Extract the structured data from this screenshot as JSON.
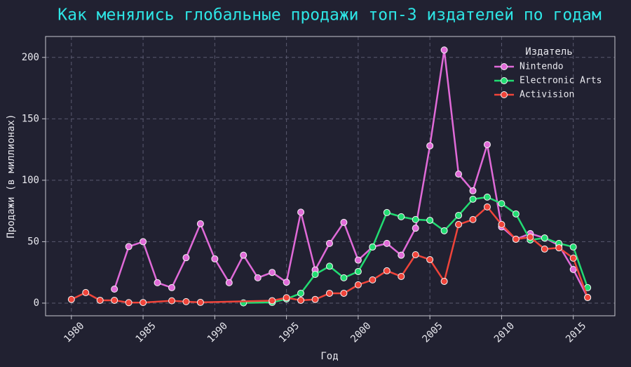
{
  "chart_data": {
    "type": "line",
    "title": "Как менялись глобальные продажи топ-3 издателей по годам",
    "x_label": "Год",
    "y_label": "Продажи (в миллионах)",
    "legend_title": "Издатель",
    "legend": "upper right",
    "grid": true,
    "xlim": [
      1978.2,
      2017.9
    ],
    "xticks": [
      1980,
      1985,
      1990,
      1995,
      2000,
      2005,
      2010,
      2015
    ],
    "ylim": [
      -10.3,
      217
    ],
    "yticks": [
      0,
      50,
      100,
      150,
      200
    ],
    "series": [
      {
        "name": "Nintendo",
        "color": "#e06ad8",
        "x": [
          1983,
          1984,
          1985,
          1986,
          1987,
          1988,
          1989,
          1990,
          1991,
          1992,
          1993,
          1994,
          1995,
          1996,
          1997,
          1998,
          1999,
          2000,
          2001,
          2002,
          2003,
          2004,
          2005,
          2006,
          2007,
          2008,
          2009,
          2010,
          2011,
          2012,
          2013,
          2014,
          2015,
          2016
        ],
        "values": [
          11.4,
          46,
          50,
          16.6,
          12.6,
          37,
          64.6,
          36,
          16.6,
          39,
          20.6,
          25,
          17,
          74,
          27,
          48.6,
          65.7,
          35,
          45.7,
          48.6,
          39,
          61,
          128,
          206,
          105,
          91.4,
          129,
          62,
          52,
          56.6,
          53,
          47,
          27.4,
          4.6
        ]
      },
      {
        "name": "Electronic Arts",
        "color": "#22dc72",
        "x": [
          1992,
          1994,
          1995,
          1996,
          1997,
          1998,
          1999,
          2000,
          2001,
          2002,
          2003,
          2004,
          2005,
          2006,
          2007,
          2008,
          2009,
          2010,
          2011,
          2012,
          2013,
          2014,
          2015,
          2016
        ],
        "values": [
          0.2,
          0.6,
          3.4,
          8,
          23.4,
          30,
          20.6,
          25.7,
          45.7,
          73.7,
          70.3,
          68,
          67.4,
          58.9,
          71.4,
          84.6,
          86.3,
          81,
          72.6,
          51.4,
          53,
          48.6,
          45.7,
          12.6
        ]
      },
      {
        "name": "Activision",
        "color": "#f0443a",
        "x": [
          1980,
          1981,
          1982,
          1983,
          1984,
          1985,
          1987,
          1988,
          1989,
          1994,
          1995,
          1996,
          1997,
          1998,
          1999,
          2000,
          2001,
          2002,
          2003,
          2004,
          2005,
          2006,
          2007,
          2008,
          2009,
          2010,
          2011,
          2012,
          2013,
          2014,
          2015,
          2016
        ],
        "values": [
          3,
          8.6,
          2.3,
          2.3,
          0.4,
          0.5,
          1.9,
          1.2,
          0.6,
          2,
          4.4,
          2.3,
          3,
          8,
          8,
          14.9,
          18.9,
          26.3,
          21.7,
          39.4,
          35.4,
          17.7,
          64,
          68,
          78.3,
          64,
          52,
          53.7,
          44,
          45,
          36.6,
          4.6
        ]
      }
    ]
  }
}
